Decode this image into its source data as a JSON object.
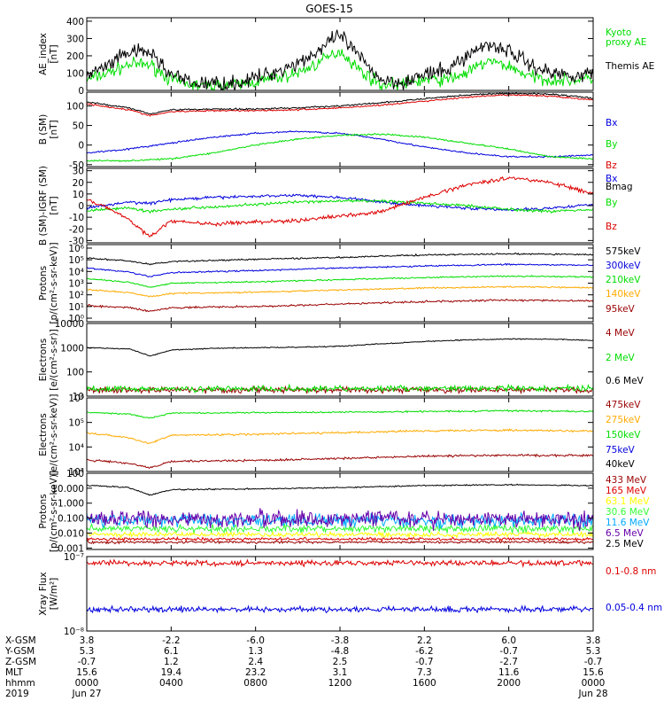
{
  "title": "GOES-15",
  "colors": {
    "black": "#000000",
    "green": "#00dd00",
    "blue": "#0000dd",
    "red": "#dd0000",
    "orange": "#ffaa00",
    "darkred": "#990000",
    "yellow": "#ffff00",
    "cyan": "#00aaff",
    "purple": "#6600aa",
    "lightgreen": "#33ff33"
  },
  "chart_data": [
    {
      "type": "line",
      "ylabel": "AE_index\n[nT]",
      "ylim": [
        0,
        420
      ],
      "scale": "linear",
      "yticks": [
        0,
        100,
        200,
        300,
        400
      ],
      "yticklabels": [
        "0",
        "100",
        "200",
        "300",
        "400"
      ],
      "series": [
        {
          "name": "Kyoto\nproxy AE",
          "color": "#00dd00",
          "noise": 18,
          "x": [
            0,
            1,
            2,
            3,
            4,
            5,
            6,
            7,
            8,
            9,
            10,
            11,
            12,
            13,
            14,
            15,
            16,
            17,
            18,
            19,
            20,
            21,
            22,
            23,
            24
          ],
          "values": [
            60,
            100,
            150,
            150,
            60,
            30,
            30,
            30,
            50,
            70,
            100,
            160,
            230,
            110,
            30,
            40,
            60,
            60,
            100,
            170,
            140,
            80,
            60,
            60,
            70
          ]
        },
        {
          "name": "Themis AE",
          "color": "#000000",
          "noise": 22,
          "x": [
            0,
            1,
            2,
            3,
            4,
            5,
            6,
            7,
            8,
            9,
            10,
            11,
            12,
            13,
            14,
            15,
            16,
            17,
            18,
            19,
            20,
            21,
            22,
            23,
            24
          ],
          "values": [
            85,
            140,
            220,
            220,
            90,
            40,
            40,
            40,
            70,
            110,
            160,
            230,
            320,
            180,
            60,
            50,
            90,
            110,
            200,
            270,
            230,
            150,
            100,
            90,
            95
          ]
        }
      ]
    },
    {
      "type": "line",
      "ylabel": "B (SM)\n[nT]",
      "ylim": [
        -55,
        135
      ],
      "scale": "linear",
      "yticks": [
        -50,
        0,
        50,
        100
      ],
      "yticklabels": [
        "-50",
        "0",
        "50",
        "100"
      ],
      "series": [
        {
          "name": "Bx",
          "color": "#0000dd",
          "noise": 1,
          "x": [
            0,
            2,
            4,
            6,
            8,
            10,
            12,
            14,
            16,
            18,
            20,
            22,
            24
          ],
          "values": [
            -20,
            -10,
            5,
            20,
            30,
            35,
            30,
            15,
            -5,
            -20,
            -30,
            -30,
            -25
          ]
        },
        {
          "name": "By",
          "color": "#00dd00",
          "noise": 1,
          "x": [
            0,
            2,
            4,
            6,
            8,
            10,
            12,
            14,
            16,
            18,
            20,
            22,
            24
          ],
          "values": [
            -40,
            -40,
            -35,
            -20,
            0,
            15,
            25,
            28,
            20,
            5,
            -10,
            -30,
            -35
          ]
        },
        {
          "name": "Bz",
          "color": "#dd0000",
          "noise": 1,
          "x": [
            0,
            2,
            3,
            4,
            6,
            8,
            10,
            12,
            14,
            16,
            18,
            20,
            22,
            24
          ],
          "values": [
            105,
            90,
            75,
            85,
            88,
            88,
            90,
            95,
            102,
            112,
            122,
            128,
            125,
            115
          ]
        },
        {
          "name": "Bmag",
          "color": "#000000",
          "noise": 1,
          "x": [
            0,
            2,
            3,
            4,
            6,
            8,
            10,
            12,
            14,
            16,
            18,
            20,
            22,
            24
          ],
          "values": [
            110,
            95,
            80,
            90,
            92,
            92,
            95,
            100,
            108,
            118,
            128,
            132,
            130,
            120
          ]
        }
      ]
    },
    {
      "type": "line",
      "ylabel": "B (SM)-IGRF (SM)\n[nT]",
      "ylim": [
        -32,
        32
      ],
      "scale": "linear",
      "yticks": [
        -30,
        -20,
        -10,
        0,
        10,
        20,
        30
      ],
      "yticklabels": [
        "-30",
        "-20",
        "-10",
        "0",
        "10",
        "20",
        "30"
      ],
      "series": [
        {
          "name": "Bx",
          "color": "#0000dd",
          "noise": 0.6,
          "x": [
            0,
            2,
            3,
            4,
            6,
            8,
            10,
            12,
            14,
            16,
            18,
            20,
            22,
            24
          ],
          "values": [
            -2,
            3,
            2,
            5,
            7,
            8,
            9,
            7,
            3,
            0,
            -2,
            -4,
            -2,
            1
          ]
        },
        {
          "name": "By",
          "color": "#00dd00",
          "noise": 0.6,
          "x": [
            0,
            2,
            3,
            4,
            6,
            8,
            10,
            12,
            14,
            16,
            18,
            20,
            22,
            24
          ],
          "values": [
            -4,
            -2,
            -5,
            -3,
            -1,
            1,
            3,
            4,
            4,
            2,
            0,
            -3,
            -5,
            -3
          ]
        },
        {
          "name": "Bz",
          "color": "#dd0000",
          "noise": 0.8,
          "x": [
            0,
            1,
            2,
            3,
            4,
            6,
            8,
            10,
            12,
            14,
            16,
            18,
            20,
            22,
            24
          ],
          "values": [
            5,
            -2,
            -12,
            -27,
            -13,
            -16,
            -14,
            -13,
            -9,
            -5,
            7,
            18,
            24,
            20,
            10
          ]
        }
      ]
    },
    {
      "type": "line",
      "ylabel": "Protons\n[p/(cm²-s-sr-keV)]",
      "ylim": [
        0.5,
        2000000
      ],
      "scale": "log",
      "yticks": [
        1,
        10,
        100,
        1000,
        10000,
        100000,
        1000000
      ],
      "yticklabels": [
        "10⁰",
        "10¹",
        "10²",
        "10³",
        "10⁴",
        "10⁵",
        "10⁶"
      ],
      "series": [
        {
          "name": "575keV",
          "color": "#000000",
          "noise": 0.03,
          "x": [
            0,
            2,
            3,
            4,
            8,
            12,
            16,
            20,
            24
          ],
          "values": [
            140000,
            80000,
            40000,
            70000,
            110000,
            160000,
            260000,
            320000,
            280000
          ]
        },
        {
          "name": "300keV",
          "color": "#0000dd",
          "noise": 0.03,
          "x": [
            0,
            2,
            3,
            4,
            8,
            12,
            16,
            20,
            24
          ],
          "values": [
            20000,
            9000,
            3500,
            8000,
            12000,
            20000,
            30000,
            40000,
            34000
          ]
        },
        {
          "name": "210keV",
          "color": "#00dd00",
          "noise": 0.03,
          "x": [
            0,
            2,
            3,
            4,
            8,
            12,
            16,
            20,
            24
          ],
          "values": [
            2400,
            1200,
            450,
            1000,
            1300,
            2000,
            3000,
            4000,
            3400
          ]
        },
        {
          "name": "140keV",
          "color": "#ffaa00",
          "noise": 0.03,
          "x": [
            0,
            2,
            3,
            4,
            8,
            12,
            16,
            20,
            24
          ],
          "values": [
            280,
            160,
            70,
            130,
            170,
            260,
            380,
            500,
            420
          ]
        },
        {
          "name": "95keV",
          "color": "#990000",
          "noise": 0.04,
          "x": [
            0,
            2,
            3,
            4,
            8,
            12,
            16,
            20,
            24
          ],
          "values": [
            12,
            8,
            4,
            8,
            10,
            16,
            26,
            36,
            30
          ]
        }
      ]
    },
    {
      "type": "line",
      "ylabel": "Electrons\n[e/(cm²-s-sr)]",
      "ylim": [
        10,
        10000
      ],
      "scale": "log",
      "yticks": [
        10,
        100,
        1000,
        10000
      ],
      "yticklabels": [
        "10",
        "100",
        "1000",
        "10000"
      ],
      "series": [
        {
          "name": "4 MeV",
          "color": "#990000",
          "noise": 0.06,
          "x": [
            0,
            24
          ],
          "values": [
            18,
            18
          ]
        },
        {
          "name": "2 MeV",
          "color": "#00dd00",
          "noise": 0.06,
          "x": [
            0,
            24
          ],
          "values": [
            20,
            21
          ]
        },
        {
          "name": "0.6 MeV",
          "color": "#000000",
          "noise": 0.01,
          "x": [
            0,
            2,
            3,
            4,
            6,
            8,
            10,
            12,
            14,
            16,
            18,
            20,
            22,
            24
          ],
          "values": [
            1000,
            900,
            450,
            800,
            950,
            1000,
            1050,
            1150,
            1450,
            1800,
            2100,
            2300,
            2250,
            2000
          ]
        }
      ]
    },
    {
      "type": "line",
      "ylabel": "Electrons\n[e/(cm²-s-sr-keV)]",
      "ylim": [
        1000,
        1000000
      ],
      "scale": "log",
      "yticks": [
        1000,
        10000,
        100000,
        1000000
      ],
      "yticklabels": [
        "10³",
        "10⁴",
        "10⁵",
        "10⁶"
      ],
      "series": [
        {
          "name": "475keV",
          "color": "#990000",
          "noise": 0.02,
          "x": [
            0,
            2,
            3,
            4,
            8,
            12,
            16,
            20,
            24
          ],
          "values": [
            3000,
            2200,
            1400,
            2600,
            2800,
            3400,
            4200,
            4600,
            4500
          ]
        },
        {
          "name": "275keV",
          "color": "#ffaa00",
          "noise": 0.02,
          "x": [
            0,
            2,
            3,
            4,
            8,
            12,
            16,
            20,
            24
          ],
          "values": [
            38000,
            24000,
            14000,
            30000,
            33000,
            38000,
            46000,
            48000,
            44000
          ]
        },
        {
          "name": "150keV",
          "color": "#00dd00",
          "noise": 0.015,
          "x": [
            0,
            2,
            3,
            4,
            8,
            12,
            16,
            20,
            24
          ],
          "values": [
            260000,
            220000,
            150000,
            240000,
            250000,
            260000,
            280000,
            300000,
            280000
          ]
        },
        {
          "name": "75keV",
          "color": "#0000dd",
          "noise": 0.02,
          "x": [],
          "values": []
        },
        {
          "name": "40keV",
          "color": "#000000",
          "noise": 0.02,
          "x": [],
          "values": []
        }
      ]
    },
    {
      "type": "line",
      "ylabel": "Protons\n[p/(cm²-s-sr-keV)]",
      "ylim": [
        0.0008,
        100
      ],
      "scale": "log",
      "yticks": [
        0.001,
        0.01,
        0.1,
        1,
        10,
        100
      ],
      "yticklabels": [
        "0.001",
        "0.010",
        "0.100",
        "1.000",
        "10.000",
        "100"
      ],
      "series": [
        {
          "name": "433 MeV",
          "color": "#990000",
          "noise": 0.04,
          "x": [
            0,
            24
          ],
          "values": [
            0.0025,
            0.0025
          ]
        },
        {
          "name": "165 MeV",
          "color": "#dd0000",
          "noise": 0.05,
          "x": [
            0,
            24
          ],
          "values": [
            0.004,
            0.004
          ]
        },
        {
          "name": "63.1 MeV",
          "color": "#ffff00",
          "noise": 0.08,
          "x": [
            0,
            24
          ],
          "values": [
            0.008,
            0.008
          ]
        },
        {
          "name": "30.6 MeV",
          "color": "#33ff33",
          "noise": 0.12,
          "x": [
            0,
            24
          ],
          "values": [
            0.02,
            0.02
          ]
        },
        {
          "name": "11.6 MeV",
          "color": "#00aaff",
          "noise": 0.22,
          "x": [
            0,
            24
          ],
          "values": [
            0.07,
            0.07
          ]
        },
        {
          "name": "6.5 MeV",
          "color": "#6600aa",
          "noise": 0.28,
          "x": [
            0,
            24
          ],
          "values": [
            0.09,
            0.09
          ]
        },
        {
          "name": "2.5 MeV",
          "color": "#000000",
          "noise": 0.02,
          "x": [
            0,
            2,
            3,
            4,
            8,
            12,
            16,
            20,
            24
          ],
          "values": [
            16,
            11,
            3.5,
            8,
            9,
            11,
            15,
            17,
            15
          ]
        }
      ]
    },
    {
      "type": "line",
      "ylabel": "Xray Flux\n[W/m²]",
      "ylim": [
        1e-08,
        1e-07
      ],
      "scale": "log",
      "yticks": [
        1e-08,
        1e-07
      ],
      "yticklabels": [
        "10⁻⁸",
        "10⁻⁷"
      ],
      "series": [
        {
          "name": "0.1-0.8 nm",
          "color": "#dd0000",
          "noise": 0.018,
          "x": [
            0,
            24
          ],
          "values": [
            8.2e-08,
            8.2e-08
          ]
        },
        {
          "name": "0.05-0.4 nm",
          "color": "#0000dd",
          "noise": 0.018,
          "x": [
            0,
            24
          ],
          "values": [
            1.95e-08,
            1.95e-08
          ]
        }
      ]
    }
  ],
  "xaxis": {
    "range": [
      0,
      24
    ],
    "tick_hours": [
      0,
      4,
      8,
      12,
      16,
      20,
      24
    ],
    "row_labels": [
      "X-GSM",
      "Y-GSM",
      "Z-GSM",
      "MLT",
      "hhmm",
      "2019"
    ],
    "rows": [
      [
        "3.8",
        "-2.2",
        "-6.0",
        "-3.8",
        "2.2",
        "6.0",
        "3.8"
      ],
      [
        "5.3",
        "6.1",
        "1.3",
        "-4.8",
        "-6.2",
        "-0.7",
        "5.3"
      ],
      [
        "-0.7",
        "1.2",
        "2.4",
        "2.5",
        "-0.7",
        "-2.7",
        "-0.7"
      ],
      [
        "15.6",
        "19.4",
        "23.2",
        "3.1",
        "7.3",
        "11.6",
        "15.6"
      ],
      [
        "0000",
        "0400",
        "0800",
        "1200",
        "1600",
        "2000",
        "0000"
      ],
      [
        "Jun 27",
        "",
        "",
        "",
        "",
        "",
        "Jun 28"
      ]
    ]
  }
}
